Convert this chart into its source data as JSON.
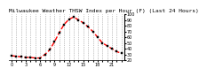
{
  "title": "Milwaukee Weather THSW Index per Hour (F) (Last 24 Hours)",
  "hours": [
    0,
    1,
    2,
    3,
    4,
    5,
    6,
    7,
    8,
    9,
    10,
    11,
    12,
    13,
    14,
    15,
    16,
    17,
    18,
    19,
    20,
    21,
    22,
    23
  ],
  "values": [
    28,
    27,
    26,
    25,
    25,
    24,
    24,
    30,
    38,
    52,
    68,
    82,
    91,
    95,
    90,
    85,
    78,
    70,
    60,
    50,
    45,
    40,
    35,
    32
  ],
  "ylim": [
    20,
    100
  ],
  "yticks": [
    20,
    30,
    40,
    50,
    60,
    70,
    80,
    90,
    100
  ],
  "line_color": "#ff0000",
  "marker_color": "#000000",
  "background_color": "#ffffff",
  "grid_color": "#888888",
  "title_fontsize": 4.5,
  "tick_fontsize": 3.5,
  "line_width": 1.0,
  "marker_size": 1.8
}
